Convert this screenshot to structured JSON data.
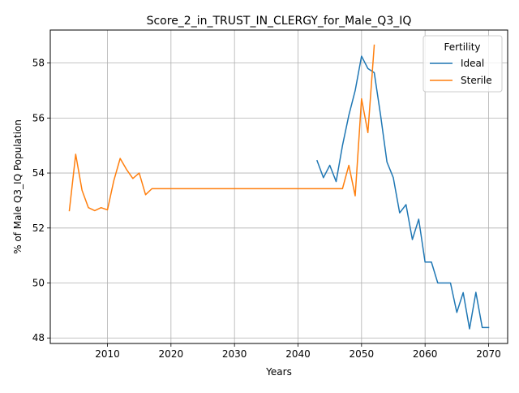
{
  "chart_data": {
    "type": "line",
    "title": "Score_2_in_TRUST_IN_CLERGY_for_Male_Q3_IQ",
    "xlabel": "Years",
    "ylabel": "% of Male Q3_IQ Population",
    "xlim": [
      2001,
      2073
    ],
    "ylim": [
      47.8,
      59.2
    ],
    "xticks": [
      2010,
      2020,
      2030,
      2040,
      2050,
      2060,
      2070
    ],
    "yticks": [
      48,
      50,
      52,
      54,
      56,
      58
    ],
    "grid": true,
    "legend": {
      "title": "Fertility",
      "position": "top-right"
    },
    "series": [
      {
        "name": "Ideal",
        "color": "#1f77b4",
        "x": [
          2043,
          2044,
          2045,
          2046,
          2047,
          2048,
          2049,
          2050,
          2051,
          2052,
          2053,
          2054,
          2055,
          2056,
          2057,
          2058,
          2059,
          2060,
          2061,
          2062,
          2063,
          2064,
          2065,
          2066,
          2067,
          2068,
          2069,
          2070
        ],
        "y": [
          54.45,
          53.83,
          54.28,
          53.69,
          55.0,
          56.1,
          57.0,
          58.25,
          57.8,
          57.65,
          56.1,
          54.4,
          53.83,
          52.55,
          52.85,
          51.58,
          52.32,
          50.76,
          50.76,
          50.0,
          50.0,
          50.0,
          48.93,
          49.65,
          48.33,
          49.66,
          48.38,
          48.38
        ]
      },
      {
        "name": "Sterile",
        "color": "#ff7f0e",
        "x": [
          2004,
          2005,
          2006,
          2007,
          2008,
          2009,
          2010,
          2011,
          2012,
          2013,
          2014,
          2015,
          2016,
          2017,
          2018,
          2019,
          2020,
          2025,
          2030,
          2035,
          2040,
          2045,
          2046,
          2047,
          2048,
          2049,
          2050,
          2051,
          2052
        ],
        "y": [
          52.63,
          54.68,
          53.37,
          52.74,
          52.63,
          52.74,
          52.66,
          53.72,
          54.53,
          54.13,
          53.8,
          54.0,
          53.21,
          53.43,
          53.43,
          53.43,
          53.43,
          53.43,
          53.43,
          53.43,
          53.43,
          53.43,
          53.43,
          53.43,
          54.28,
          53.17,
          56.7,
          55.47,
          58.65
        ]
      }
    ]
  }
}
